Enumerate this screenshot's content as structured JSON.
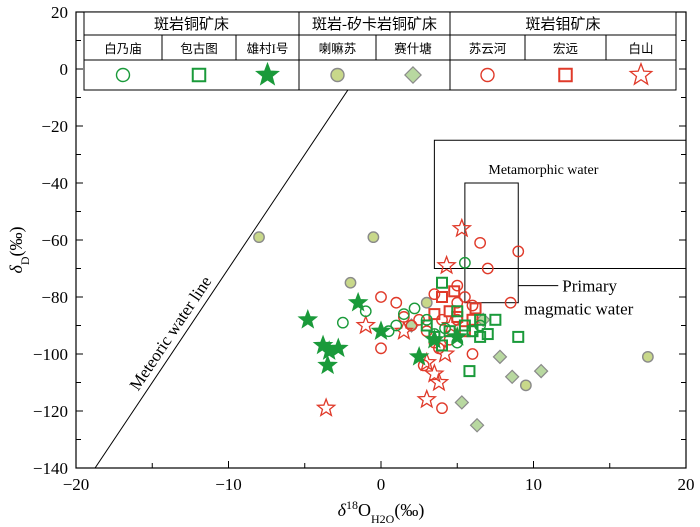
{
  "chart_data": {
    "type": "scatter",
    "xlabel": {
      "prefix": "δ",
      "sup": "18",
      "main": "O",
      "sub": "H2O",
      "unit": "(‰)"
    },
    "ylabel": {
      "prefix": "δ",
      "sub": "D",
      "unit": "(‰)"
    },
    "xlim": [
      -20,
      20
    ],
    "ylim": [
      -140,
      20
    ],
    "xticks": [
      -20,
      -10,
      0,
      10,
      20
    ],
    "yticks": [
      -140,
      -120,
      -100,
      -80,
      -60,
      -40,
      -20,
      0,
      20
    ],
    "colors": {
      "green": "#1a9a3a",
      "red": "#e03a2a",
      "lightfill": "#c8d88a",
      "lightfill2": "#b8d8a0",
      "grey": "#8a8a8a"
    },
    "legend": {
      "groups": [
        {
          "label": "斑岩铜矿床"
        },
        {
          "label": "斑岩-矽卡岩铜矿床"
        },
        {
          "label": "斑岩钼矿床"
        }
      ]
    },
    "annotations": {
      "meteoric_label": "Meteoric water line",
      "metamorphic_label": "Metamorphic water",
      "primary_label_1": "Primary",
      "primary_label_2": "magmatic water"
    },
    "regions": {
      "metamorphic": {
        "x": [
          3.5,
          20
        ],
        "y": [
          -70,
          -25
        ]
      },
      "primary": {
        "x": [
          5.5,
          9
        ],
        "y": [
          -82,
          -40
        ]
      }
    },
    "meteoric_line": {
      "slope": 8,
      "intercept": 10
    },
    "series": [
      {
        "name": "白乃庙",
        "marker": "circle",
        "color": "#1a9a3a",
        "fill": "none",
        "points": [
          [
            -2.5,
            -89
          ],
          [
            -1,
            -85
          ],
          [
            0.5,
            -92
          ],
          [
            1,
            -90
          ],
          [
            1.5,
            -86
          ],
          [
            3,
            -88
          ],
          [
            3.5,
            -93
          ],
          [
            4.2,
            -91
          ],
          [
            5,
            -96
          ],
          [
            5.5,
            -68
          ],
          [
            6,
            -92
          ],
          [
            6.5,
            -90
          ],
          [
            2.2,
            -84
          ]
        ]
      },
      {
        "name": "包古图",
        "marker": "square",
        "color": "#1a9a3a",
        "fill": "none",
        "points": [
          [
            3,
            -90
          ],
          [
            3.5,
            -94
          ],
          [
            4,
            -75
          ],
          [
            4.5,
            -92
          ],
          [
            5,
            -85
          ],
          [
            5.5,
            -90
          ],
          [
            6,
            -92
          ],
          [
            6.5,
            -88
          ],
          [
            7,
            -93
          ],
          [
            7.5,
            -88
          ],
          [
            9,
            -94
          ],
          [
            5.8,
            -106
          ],
          [
            6.5,
            -94
          ],
          [
            4,
            -97
          ]
        ]
      },
      {
        "name": "雄村I号",
        "marker": "star",
        "color": "#1a9a3a",
        "fill": "#1a9a3a",
        "points": [
          [
            -4.8,
            -88
          ],
          [
            -3.8,
            -97
          ],
          [
            -3.5,
            -104
          ],
          [
            -2.8,
            -98
          ],
          [
            -1.5,
            -82
          ],
          [
            0,
            -92
          ],
          [
            2.5,
            -101
          ],
          [
            3.5,
            -95
          ],
          [
            5,
            -94
          ],
          [
            -3.4,
            -99
          ]
        ]
      },
      {
        "name": "喇嘛苏",
        "marker": "circle",
        "color": "#8a8a8a",
        "fill": "#c8d88a",
        "points": [
          [
            -8,
            -59
          ],
          [
            -2,
            -75
          ],
          [
            -0.5,
            -59
          ],
          [
            3,
            -82
          ],
          [
            9.5,
            -111
          ],
          [
            17.5,
            -101
          ]
        ]
      },
      {
        "name": "赛什塘",
        "marker": "diamond",
        "color": "#8a8a8a",
        "fill": "#b8d8a0",
        "points": [
          [
            2,
            -90
          ],
          [
            5.3,
            -117
          ],
          [
            6.3,
            -125
          ],
          [
            6.7,
            -88
          ],
          [
            7.8,
            -101
          ],
          [
            8.6,
            -108
          ],
          [
            10.5,
            -106
          ]
        ]
      },
      {
        "name": "苏云河",
        "marker": "circle",
        "color": "#e03a2a",
        "fill": "none",
        "points": [
          [
            0,
            -80
          ],
          [
            0,
            -98
          ],
          [
            1,
            -82
          ],
          [
            1.5,
            -87
          ],
          [
            2,
            -90
          ],
          [
            2.5,
            -88
          ],
          [
            3,
            -92
          ],
          [
            3.5,
            -96
          ],
          [
            3.5,
            -79
          ],
          [
            4,
            -119
          ],
          [
            4,
            -88
          ],
          [
            4.5,
            -95
          ],
          [
            5,
            -76
          ],
          [
            5,
            -82
          ],
          [
            5.5,
            -80
          ],
          [
            6,
            -100
          ],
          [
            6,
            -83
          ],
          [
            6.5,
            -61
          ],
          [
            7,
            -70
          ],
          [
            8.5,
            -82
          ],
          [
            9,
            -64
          ],
          [
            5,
            -88
          ],
          [
            3.8,
            -98
          ],
          [
            2.8,
            -104
          ]
        ]
      },
      {
        "name": "宏远",
        "marker": "square",
        "color": "#e03a2a",
        "fill": "none",
        "points": [
          [
            3.5,
            -86
          ],
          [
            4,
            -80
          ],
          [
            4.5,
            -85
          ],
          [
            5,
            -87
          ],
          [
            5.5,
            -92
          ],
          [
            6,
            -88
          ],
          [
            6.2,
            -84
          ],
          [
            4.8,
            -78
          ]
        ]
      },
      {
        "name": "白山",
        "marker": "star",
        "color": "#e03a2a",
        "fill": "none",
        "points": [
          [
            -3.6,
            -119
          ],
          [
            -1,
            -90
          ],
          [
            1.5,
            -92
          ],
          [
            3,
            -103
          ],
          [
            3,
            -116
          ],
          [
            3.8,
            -110
          ],
          [
            4.3,
            -69
          ],
          [
            5.3,
            -56
          ],
          [
            4.6,
            -90
          ],
          [
            3.5,
            -107
          ],
          [
            4.2,
            -100
          ]
        ]
      }
    ]
  }
}
